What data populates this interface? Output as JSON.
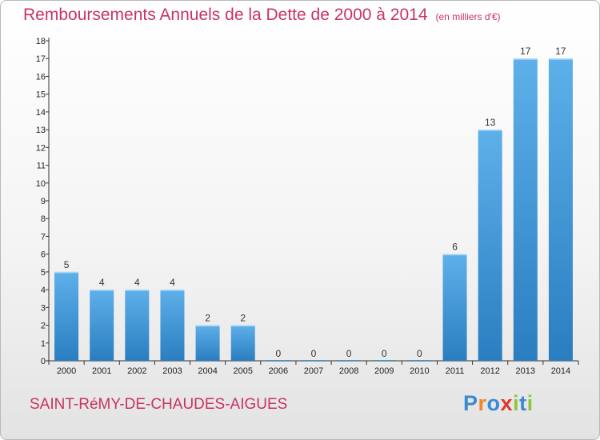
{
  "title": "Remboursements Annuels de la Dette de 2000 à 2014",
  "unit": "(en milliers d'€)",
  "commune": "SAINT-RéMY-DE-CHAUDES-AIGUES",
  "logo": {
    "letters": [
      "P",
      "r",
      "o",
      "x",
      "i",
      "t",
      "i"
    ],
    "colors": [
      "#3a8ad6",
      "#f08a24",
      "#3a8ad6",
      "#e0352b",
      "#8cc63f",
      "#3a8ad6",
      "#8cc63f"
    ]
  },
  "colors": {
    "bar_light": "#5eb0ea",
    "bar_dark": "#2a7ec0",
    "accent": "#c8345f"
  },
  "chart_data": {
    "type": "bar",
    "title": "Remboursements Annuels de la Dette de 2000 à 2014",
    "categories": [
      "2000",
      "2001",
      "2002",
      "2003",
      "2004",
      "2005",
      "2006",
      "2007",
      "2008",
      "2009",
      "2010",
      "2011",
      "2012",
      "2013",
      "2014"
    ],
    "values": [
      5,
      4,
      4,
      4,
      2,
      2,
      0,
      0,
      0,
      0,
      0,
      6,
      13,
      17,
      17
    ],
    "yticks": [
      "0",
      "1",
      "2",
      "3",
      "4",
      "5",
      "6",
      "7",
      "8",
      "9",
      "10",
      "11",
      "12",
      "13",
      "14",
      "15",
      "16",
      "17",
      "18"
    ],
    "ylim": [
      0,
      18
    ],
    "grid": false,
    "legend": "none"
  }
}
